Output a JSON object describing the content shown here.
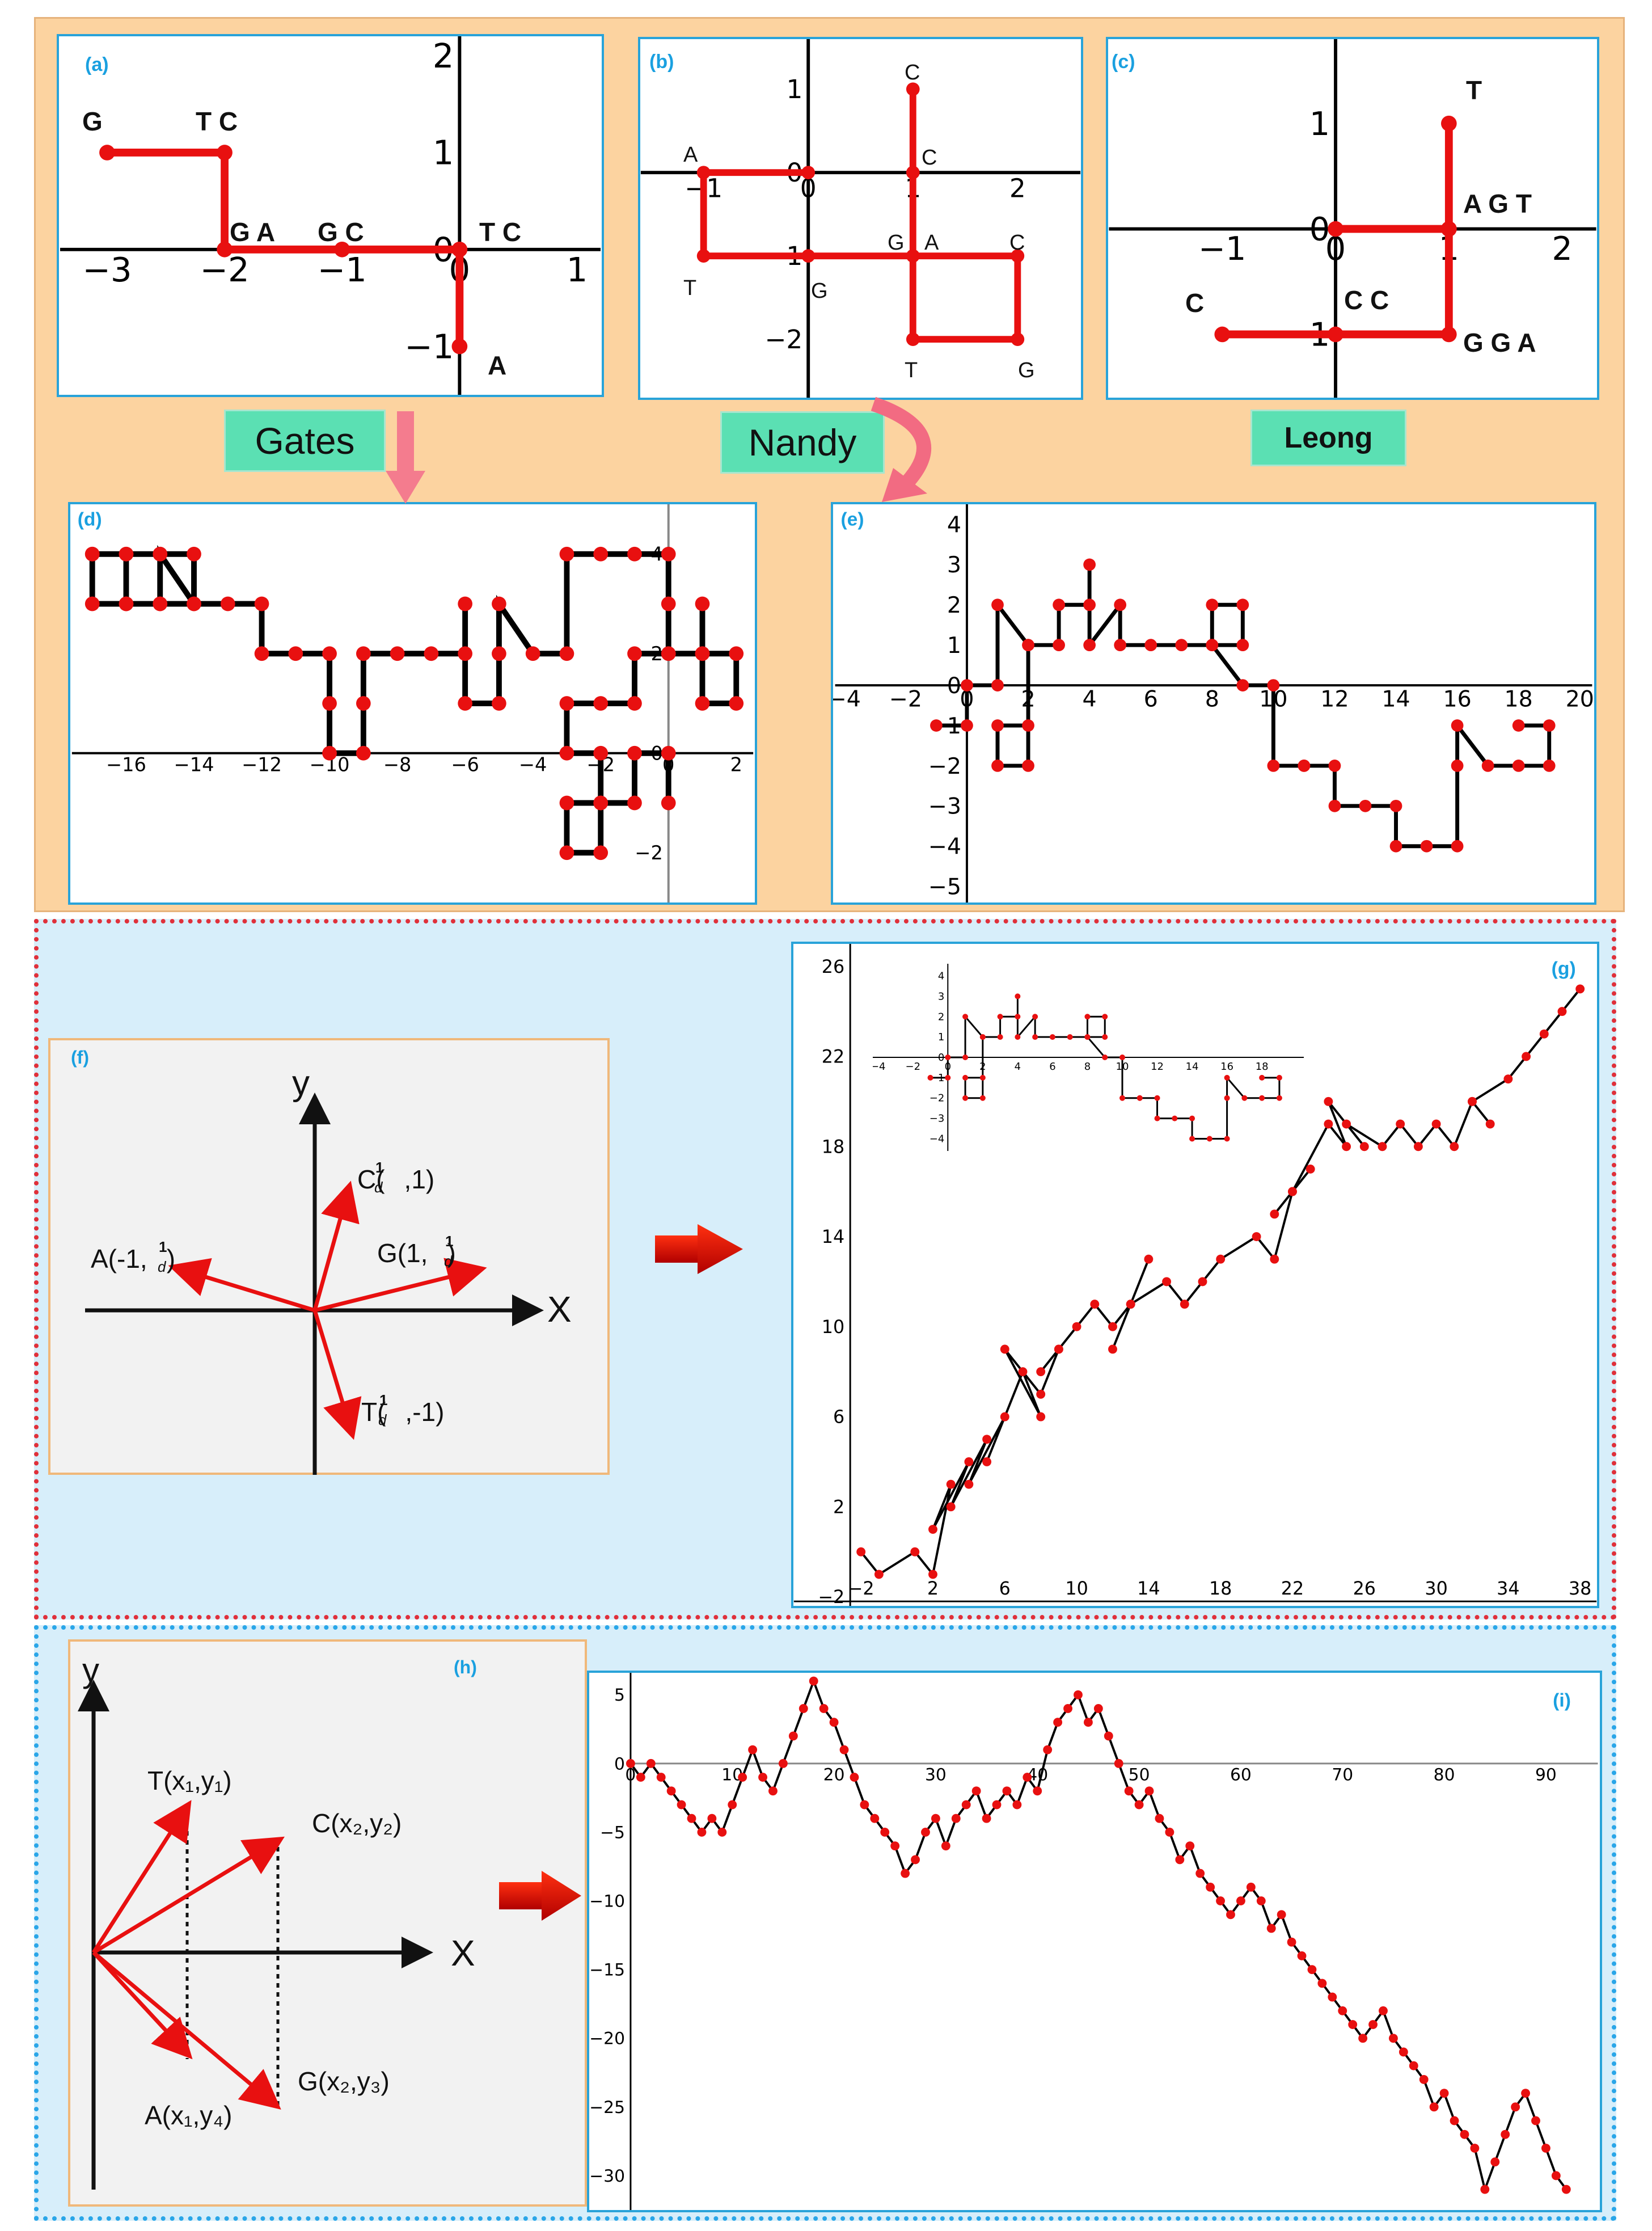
{
  "colors": {
    "accent": "#e81010",
    "line": "#000000",
    "panel_border": "#29a3d9",
    "top_bg": "#fcd3a0",
    "bottom_bg": "#d7eefa",
    "method_bg": "#5be0b3"
  },
  "panels": {
    "a": {
      "label": "(a)",
      "letters": [
        "G",
        "T C",
        "G A",
        "G C",
        "T C",
        "A"
      ]
    },
    "b": {
      "label": "(b)",
      "letters": [
        "C",
        "C",
        "A",
        "G",
        "A",
        "C",
        "T",
        "G",
        "T",
        "G"
      ]
    },
    "c": {
      "label": "(c)",
      "letters": [
        "T",
        "A G T",
        "C",
        "C C",
        "G G A"
      ]
    },
    "d": {
      "label": "(d)"
    },
    "e": {
      "label": "(e)"
    },
    "f": {
      "label": "(f)",
      "axis_x": "X",
      "axis_y": "y",
      "vec_c": "C(",
      "vec_c_end": ",1)",
      "vec_g": "G(1,",
      "vec_g_end": ")",
      "vec_a": "A(-1,",
      "vec_a_end": ")",
      "vec_t": "T(",
      "vec_t_end": ",-1)",
      "frac_num": "1",
      "frac_den": "d"
    },
    "g": {
      "label": "(g)"
    },
    "h": {
      "label": "(h)",
      "axis_x": "X",
      "axis_y": "y",
      "vec_t": "T(x₁,y₁)",
      "vec_c": "C(x₂,y₂)",
      "vec_g": "G(x₂,y₃)",
      "vec_a": "A(x₁,y₄)"
    },
    "i": {
      "label": "(i)"
    }
  },
  "methods": {
    "gates": "Gates",
    "nandy": "Nandy",
    "leong": "Leong"
  },
  "chart_data": [
    {
      "id": "a",
      "type": "line",
      "xticks": [
        "−3",
        "−2",
        "−1",
        "0",
        "1"
      ],
      "yticks": [
        "2",
        "1",
        "0",
        "−1"
      ],
      "x": [
        -3,
        -2,
        -2,
        -1,
        0,
        0
      ],
      "y": [
        1,
        1,
        0,
        0,
        0,
        -1
      ]
    },
    {
      "id": "b",
      "type": "line",
      "xticks": [
        "−1",
        "0",
        "1",
        "2"
      ],
      "yticks": [
        "1",
        "0",
        "−1",
        "−2"
      ],
      "x": [
        1,
        1,
        1,
        1,
        2,
        2,
        1,
        1,
        0,
        -1,
        -1,
        0
      ],
      "y": [
        1,
        0,
        -1,
        -1,
        -1,
        -2,
        -2,
        -1,
        -1,
        -1,
        0,
        0
      ]
    },
    {
      "id": "c",
      "type": "line",
      "xticks": [
        "−1",
        "0",
        "1",
        "2"
      ],
      "yticks": [
        "1",
        "0",
        "−1"
      ],
      "x": [
        1,
        1,
        0,
        1,
        1,
        0,
        -1
      ],
      "y": [
        1,
        0,
        0,
        0,
        -1,
        -1,
        -1
      ]
    },
    {
      "id": "d",
      "type": "line",
      "xticks": [
        "−16",
        "−14",
        "−12",
        "−10",
        "−8",
        "−6",
        "−4",
        "−2",
        "0",
        "2"
      ],
      "yticks": [
        "4",
        "2",
        "0",
        "−2"
      ],
      "x": [
        -17,
        -16,
        -15,
        -14,
        -14,
        -15,
        -16,
        -17,
        -17,
        -16,
        -16,
        -15,
        -15,
        -14,
        -13,
        -12,
        -12,
        -11,
        -10,
        -10,
        -10,
        -9,
        -9,
        -9,
        -8,
        -7,
        -6,
        -6,
        -6,
        -5,
        -5,
        -5,
        -4,
        -3,
        -3,
        -2,
        -1,
        0,
        0,
        0,
        1,
        1,
        1,
        2,
        2,
        1,
        0,
        -1,
        -1,
        -2,
        -3,
        -3,
        -2,
        -2,
        -3,
        -3,
        -2,
        -2,
        -1,
        -1,
        0,
        0
      ],
      "y": [
        4,
        4,
        4,
        4,
        3,
        3,
        3,
        3,
        4,
        4,
        3,
        3,
        4,
        3,
        3,
        3,
        2,
        2,
        2,
        1,
        0,
        0,
        1,
        2,
        2,
        2,
        2,
        3,
        1,
        1,
        2,
        3,
        2,
        2,
        4,
        4,
        4,
        4,
        3,
        2,
        2,
        3,
        1,
        1,
        2,
        2,
        2,
        2,
        1,
        1,
        1,
        0,
        0,
        -1,
        -1,
        -2,
        -2,
        -1,
        -1,
        0,
        0,
        -1
      ]
    },
    {
      "id": "e",
      "type": "line",
      "xticks": [
        "−4",
        "−2",
        "0",
        "2",
        "4",
        "6",
        "8",
        "10",
        "12",
        "14",
        "16",
        "18",
        "20"
      ],
      "yticks": [
        "4",
        "3",
        "2",
        "1",
        "0",
        "−1",
        "−2",
        "−3",
        "−4",
        "−5"
      ],
      "x": [
        -1,
        0,
        0,
        1,
        1,
        2,
        2,
        1,
        1,
        2,
        2,
        3,
        3,
        4,
        4,
        4,
        5,
        5,
        6,
        7,
        8,
        8,
        9,
        9,
        8,
        9,
        10,
        10,
        11,
        11,
        12,
        12,
        13,
        14,
        14,
        15,
        16,
        16,
        16,
        17,
        18,
        19,
        19,
        18
      ],
      "y": [
        -1,
        -1,
        0,
        0,
        2,
        1,
        -1,
        -1,
        -2,
        -2,
        1,
        1,
        2,
        2,
        3,
        1,
        2,
        1,
        1,
        1,
        1,
        2,
        2,
        1,
        1,
        0,
        0,
        -2,
        -2,
        -2,
        -2,
        -3,
        -3,
        -3,
        -4,
        -4,
        -4,
        -2,
        -1,
        -2,
        -2,
        -2,
        -1,
        -1
      ]
    },
    {
      "id": "g",
      "type": "line",
      "xticks": [
        "−2",
        "2",
        "6",
        "10",
        "14",
        "18",
        "22",
        "26",
        "30",
        "34",
        "38"
      ],
      "yticks": [
        "26",
        "22",
        "18",
        "14",
        "10",
        "6",
        "2",
        "−2"
      ],
      "x": [
        -2,
        -1,
        1,
        2,
        3,
        2,
        4,
        3,
        5,
        4,
        6,
        5,
        7,
        8,
        6,
        8,
        9,
        8,
        10,
        9,
        11,
        12,
        13,
        12,
        14,
        13,
        15,
        16,
        17,
        18,
        20,
        21,
        22,
        21,
        23,
        22,
        24,
        25,
        24,
        26,
        25,
        27,
        28,
        29,
        30,
        31,
        32,
        33,
        32,
        34,
        35,
        36,
        37,
        38
      ],
      "y": [
        0,
        -1,
        0,
        -1,
        3,
        1,
        4,
        2,
        5,
        3,
        6,
        4,
        8,
        6,
        9,
        7,
        9,
        8,
        10,
        9,
        11,
        10,
        11,
        9,
        13,
        11,
        12,
        11,
        12,
        13,
        14,
        13,
        16,
        15,
        17,
        16,
        19,
        18,
        20,
        18,
        19,
        18,
        19,
        18,
        19,
        18,
        20,
        19,
        20,
        21,
        22,
        23,
        24,
        25
      ]
    },
    {
      "id": "i",
      "type": "line",
      "xticks": [
        "0",
        "10",
        "20",
        "30",
        "40",
        "50",
        "60",
        "70",
        "80",
        "90"
      ],
      "yticks": [
        "5",
        "0",
        "−5",
        "−10",
        "−15",
        "−20",
        "−25",
        "−30"
      ],
      "x": [
        0,
        1,
        2,
        3,
        4,
        5,
        6,
        7,
        8,
        9,
        10,
        11,
        12,
        13,
        14,
        15,
        16,
        17,
        18,
        19,
        20,
        21,
        22,
        23,
        24,
        25,
        26,
        27,
        28,
        29,
        30,
        31,
        32,
        33,
        34,
        35,
        36,
        37,
        38,
        39,
        40,
        41,
        42,
        43,
        44,
        45,
        46,
        47,
        48,
        49,
        50,
        51,
        52,
        53,
        54,
        55,
        56,
        57,
        58,
        59,
        60,
        61,
        62,
        63,
        64,
        65,
        66,
        67,
        68,
        69,
        70,
        71,
        72,
        73,
        74,
        75,
        76,
        77,
        78,
        79,
        80,
        81,
        82,
        83,
        84,
        85,
        86,
        87,
        88,
        89,
        90,
        91,
        92
      ],
      "y": [
        0,
        -1,
        0,
        -1,
        -2,
        -3,
        -4,
        -5,
        -4,
        -5,
        -3,
        -1,
        1,
        -1,
        -2,
        0,
        2,
        4,
        6,
        4,
        3,
        1,
        -1,
        -3,
        -4,
        -5,
        -6,
        -8,
        -7,
        -5,
        -4,
        -6,
        -4,
        -3,
        -2,
        -4,
        -3,
        -2,
        -3,
        -1,
        -2,
        1,
        3,
        4,
        5,
        3,
        4,
        2,
        0,
        -2,
        -3,
        -2,
        -4,
        -5,
        -7,
        -6,
        -8,
        -9,
        -10,
        -11,
        -10,
        -9,
        -10,
        -12,
        -11,
        -13,
        -14,
        -15,
        -16,
        -17,
        -18,
        -19,
        -20,
        -19,
        -18,
        -20,
        -21,
        -22,
        -23,
        -25,
        -24,
        -26,
        -27,
        -28,
        -31,
        -29,
        -27,
        -25,
        -24,
        -26,
        -28,
        -30,
        -31
      ]
    }
  ]
}
